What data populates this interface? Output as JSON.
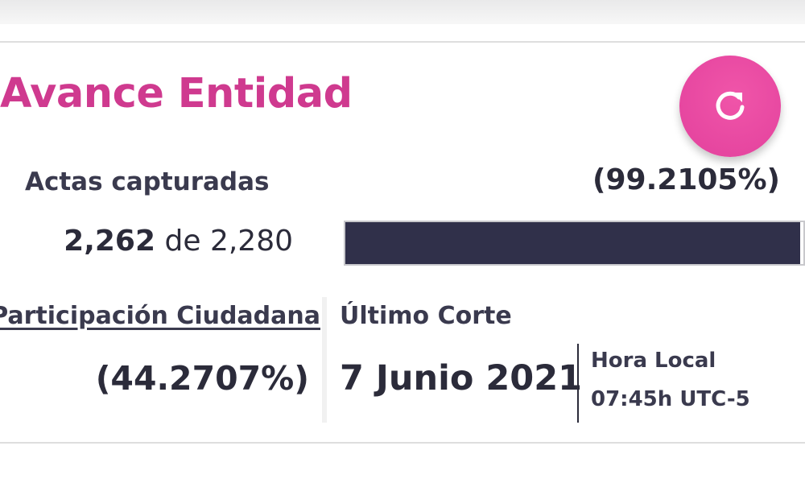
{
  "header": {
    "title": "Avance Entidad",
    "refresh_icon": "refresh-icon",
    "accent_color": "#cf3a8f"
  },
  "actas": {
    "label": "Actas capturadas",
    "percent": "(99.2105%)",
    "captured": "2,262",
    "connector": "de",
    "total": "2,280",
    "progress_fraction": 0.992105,
    "bar_color": "#30304a"
  },
  "participacion": {
    "label": "Participación Ciudadana",
    "value": "(44.2707%)"
  },
  "corte": {
    "label": "Último Corte",
    "date": "7 Junio 2021",
    "hora_label": "Hora Local",
    "hora_value": "07:45h UTC-5"
  }
}
